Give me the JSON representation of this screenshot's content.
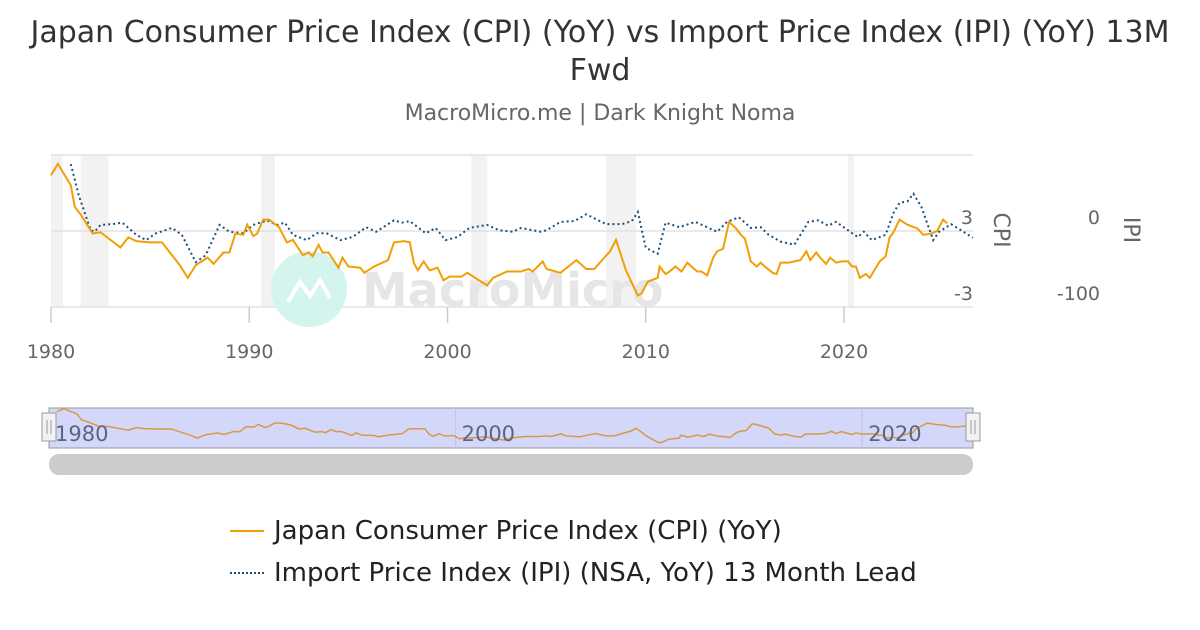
{
  "title": "Japan Consumer Price Index (CPI) (YoY) vs Import Price Index (IPI) (YoY) 13M Fwd",
  "subtitle": "MacroMicro.me | Dark Knight Noma",
  "watermark": "MacroMicro",
  "colors": {
    "cpi": "#f29f05",
    "ipi": "#1d4e78",
    "recession": "#f2f2f2",
    "navigator_mask": "#d3d8fa",
    "scrollbar": "#cccccc"
  },
  "chart_data": {
    "type": "line",
    "title": "Japan Consumer Price Index (CPI) (YoY) vs Import Price Index (IPI) (YoY) 13M Fwd",
    "x_ticks": [
      "1980",
      "1990",
      "2000",
      "2010",
      "2020"
    ],
    "xlim": [
      1980,
      2026.5
    ],
    "grid": true,
    "legend_placement": "bottom",
    "y_axes": [
      {
        "label": "CPI",
        "ticks": [
          "3",
          "-3"
        ],
        "ylim": [
          -3,
          9
        ],
        "side": "right"
      },
      {
        "label": "IPI",
        "ticks": [
          "0",
          "-100"
        ],
        "ylim": [
          -100,
          100
        ],
        "side": "right"
      }
    ],
    "recession_bands": [
      [
        1980.0,
        1980.6
      ],
      [
        1981.5,
        1982.9
      ],
      [
        1990.6,
        1991.3
      ],
      [
        2001.2,
        2002.0
      ],
      [
        2008.0,
        2009.5
      ],
      [
        2020.2,
        2020.5
      ]
    ],
    "navigator_ticks": [
      "1980",
      "2000",
      "2020"
    ],
    "series": [
      {
        "name": "Japan Consumer Price Index (CPI) (YoY)",
        "axis": "CPI",
        "style": "solid",
        "x": [
          1980.0,
          1980.35,
          1981.0,
          1981.2,
          1981.5,
          1982.1,
          1982.5,
          1983.0,
          1983.5,
          1983.9,
          1984.3,
          1985.0,
          1985.6,
          1986.5,
          1986.9,
          1987.3,
          1987.9,
          1988.2,
          1988.7,
          1989.0,
          1989.3,
          1989.7,
          1989.9,
          1990.2,
          1990.4,
          1990.7,
          1991.0,
          1991.5,
          1991.9,
          1992.2,
          1992.7,
          1993.0,
          1993.2,
          1993.5,
          1993.7,
          1994.0,
          1994.5,
          1994.7,
          1995.0,
          1995.6,
          1995.8,
          1996.3,
          1997.0,
          1997.3,
          1997.8,
          1998.1,
          1998.3,
          1998.5,
          1998.8,
          1999.1,
          1999.5,
          1999.8,
          2000.1,
          2000.7,
          2001.0,
          2001.3,
          2002.0,
          2002.3,
          2003.0,
          2003.7,
          2004.1,
          2004.3,
          2004.8,
          2005.0,
          2005.7,
          2006.5,
          2007.0,
          2007.4,
          2007.8,
          2008.2,
          2008.5,
          2009.0,
          2009.6,
          2009.8,
          2010.1,
          2010.6,
          2010.7,
          2011.0,
          2011.2,
          2011.5,
          2011.8,
          2012.1,
          2012.3,
          2012.6,
          2012.8,
          2013.1,
          2013.4,
          2013.6,
          2013.9,
          2014.2,
          2014.5,
          2014.8,
          2015.0,
          2015.3,
          2015.6,
          2015.8,
          2016.0,
          2016.4,
          2016.6,
          2016.8,
          2017.2,
          2017.5,
          2017.8,
          2018.1,
          2018.3,
          2018.6,
          2018.8,
          2019.1,
          2019.3,
          2019.6,
          2019.9,
          2020.2,
          2020.4,
          2020.6,
          2020.8,
          2021.1,
          2021.3,
          2021.8,
          2022.1,
          2022.3,
          2022.5,
          2022.8,
          2023.2,
          2023.7,
          2024.0,
          2024.4,
          2024.7,
          2025.0,
          2025.2
        ],
        "values": [
          7.4,
          8.3,
          6.6,
          4.9,
          4.3,
          2.8,
          2.9,
          2.3,
          1.7,
          2.5,
          2.2,
          2.1,
          2.1,
          0.3,
          -0.7,
          0.3,
          0.9,
          0.4,
          1.3,
          1.3,
          2.8,
          2.7,
          3.5,
          2.6,
          2.8,
          3.9,
          3.9,
          3.3,
          2.1,
          2.3,
          1.1,
          1.3,
          1.0,
          1.9,
          1.3,
          1.3,
          0.1,
          0.9,
          0.2,
          0.1,
          -0.3,
          0.2,
          0.7,
          2.1,
          2.2,
          2.1,
          0.5,
          -0.1,
          0.6,
          -0.1,
          0.1,
          -0.9,
          -0.6,
          -0.6,
          -0.3,
          -0.6,
          -1.3,
          -0.7,
          -0.2,
          -0.2,
          0.0,
          -0.2,
          0.6,
          0.0,
          -0.3,
          0.7,
          0.0,
          0.0,
          0.7,
          1.4,
          2.3,
          -0.1,
          -2.1,
          -1.9,
          -1.0,
          -0.7,
          0.2,
          -0.4,
          -0.2,
          0.2,
          -0.2,
          0.5,
          0.2,
          -0.2,
          -0.2,
          -0.5,
          0.9,
          1.4,
          1.6,
          3.7,
          3.3,
          2.7,
          2.4,
          0.6,
          0.2,
          0.5,
          0.2,
          -0.3,
          -0.4,
          0.5,
          0.5,
          0.6,
          0.7,
          1.4,
          0.7,
          1.3,
          0.9,
          0.4,
          0.9,
          0.5,
          0.6,
          0.6,
          0.2,
          0.2,
          -0.7,
          -0.4,
          -0.7,
          0.6,
          1.0,
          2.5,
          2.9,
          3.9,
          3.5,
          3.2,
          2.7,
          2.8,
          3.0,
          3.9,
          3.6
        ]
      },
      {
        "name": "Import Price Index (IPI) (NSA, YoY) 13 Month Lead",
        "axis": "IPI",
        "style": "dotted",
        "x": [
          1981.0,
          1981.4,
          1982.0,
          1982.2,
          1982.5,
          1983.1,
          1983.6,
          1984.3,
          1984.8,
          1985.3,
          1986.1,
          1986.6,
          1987.3,
          1987.8,
          1988.5,
          1989.0,
          1989.7,
          1990.2,
          1990.9,
          1991.4,
          1991.8,
          1992.2,
          1992.9,
          1993.4,
          1993.9,
          1994.6,
          1995.2,
          1995.9,
          1996.4,
          1996.7,
          1997.3,
          1997.7,
          1998.1,
          1998.9,
          1999.4,
          1999.9,
          2000.5,
          2001.1,
          2002.0,
          2002.6,
          2003.3,
          2003.7,
          2004.7,
          2005.0,
          2005.7,
          2006.4,
          2007.0,
          2008.0,
          2008.8,
          2009.3,
          2009.6,
          2010.0,
          2010.6,
          2011.0,
          2011.7,
          2012.5,
          2013.6,
          2014.1,
          2014.7,
          2015.3,
          2015.8,
          2016.2,
          2016.8,
          2017.5,
          2018.2,
          2018.7,
          2019.2,
          2019.6,
          2020.2,
          2020.7,
          2021.0,
          2021.4,
          2022.1,
          2022.5,
          2022.8,
          2023.2,
          2023.5,
          2023.9,
          2024.5,
          2024.8,
          2025.4,
          2025.9,
          2026.5
        ],
        "values": [
          88,
          47,
          1,
          -1,
          8,
          9,
          11,
          -5,
          -12,
          -3,
          4,
          -5,
          -41,
          -32,
          8,
          -1,
          -3,
          8,
          14,
          8,
          11,
          -5,
          -12,
          -3,
          -3,
          -12,
          -8,
          5,
          -1,
          4,
          14,
          11,
          13,
          -3,
          4,
          -12,
          -8,
          4,
          8,
          1,
          -1,
          4,
          -1,
          1,
          12,
          13,
          22,
          9,
          9,
          13,
          25,
          -22,
          -30,
          11,
          5,
          12,
          -1,
          12,
          18,
          4,
          5,
          -5,
          -14,
          -18,
          12,
          14,
          7,
          12,
          1,
          -8,
          -1,
          -12,
          -5,
          24,
          37,
          39,
          49,
          32,
          -12,
          -1,
          9,
          1,
          -9
        ]
      }
    ]
  },
  "legend": {
    "cpi": "Japan Consumer Price Index (CPI) (YoY)",
    "ipi": "Import Price Index (IPI) (NSA, YoY) 13 Month Lead"
  }
}
